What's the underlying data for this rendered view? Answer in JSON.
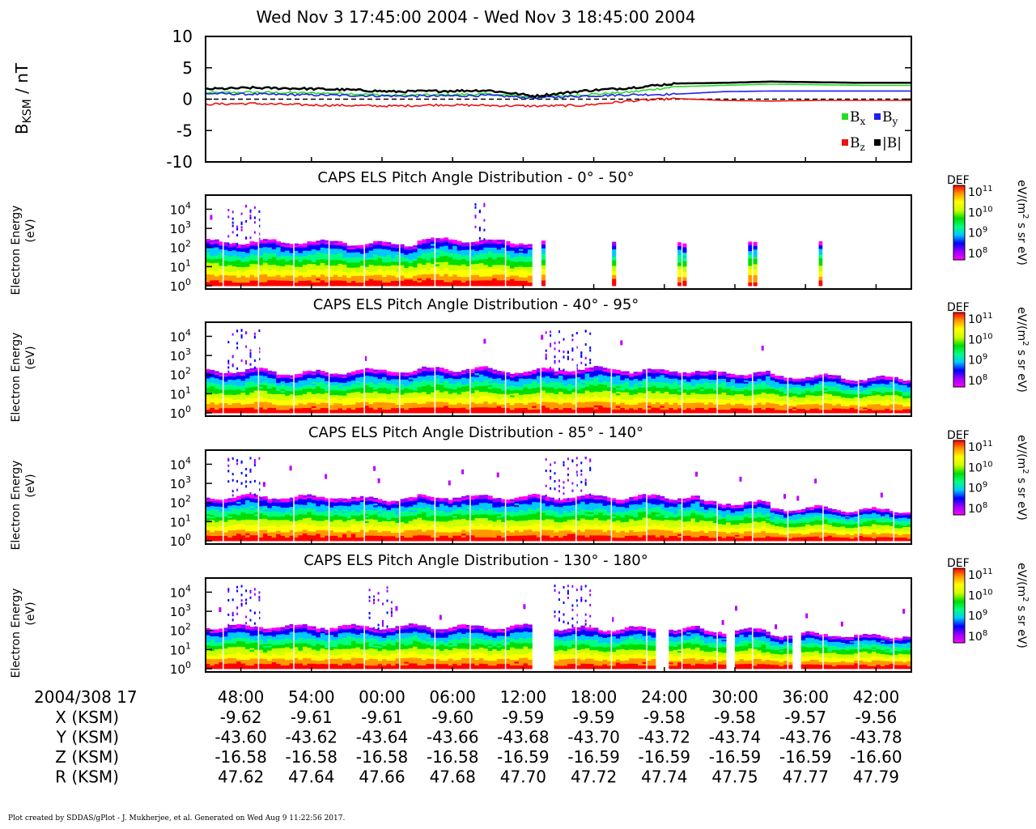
{
  "title": "Wed Nov 3 17:45:00 2004 - Wed Nov 3 18:45:00 2004",
  "footer": "Plot created by SDDAS/gPlot - J. Mukherjee, et al.  Generated on Wed Aug 9 11:22:56 2017.",
  "colors": {
    "bx": "#22dd22",
    "by": "#1f1fee",
    "bz": "#ee1111",
    "btot": "#000000",
    "colormap": [
      "#ff00ff",
      "#9a00ff",
      "#0000ff",
      "#00c8ff",
      "#00ff80",
      "#00dd00",
      "#ccff00",
      "#ffff00",
      "#ff9900",
      "#ff0000"
    ]
  },
  "chart_data": [
    {
      "type": "line",
      "title": "",
      "ylabel_base": "B",
      "ylabel_sub": "KSM",
      "ylabel_unit": " / nT",
      "ylim": [
        -10,
        10
      ],
      "yticks": [
        "10",
        "5",
        "0",
        "-5",
        "-10"
      ],
      "legend_position": "bottom-right",
      "legend": [
        {
          "base": "B",
          "sub": "x",
          "color_key": "bx"
        },
        {
          "base": "B",
          "sub": "y",
          "color_key": "by"
        },
        {
          "base": "B",
          "sub": "z",
          "color_key": "bz"
        },
        {
          "base": "|B|",
          "sub": "",
          "color_key": "btot"
        }
      ],
      "x_minutes": [
        0,
        4,
        8,
        12,
        16,
        20,
        24,
        28,
        32,
        36,
        40,
        44,
        48,
        52,
        56,
        60
      ],
      "series": [
        {
          "name": "Bx",
          "color_key": "bx",
          "values": [
            1.0,
            1.1,
            1.0,
            0.9,
            0.6,
            0.7,
            0.8,
            0.3,
            0.7,
            1.1,
            2.0,
            2.2,
            2.4,
            2.3,
            2.2,
            2.2
          ]
        },
        {
          "name": "By",
          "color_key": "by",
          "values": [
            0.9,
            0.8,
            0.7,
            0.6,
            0.5,
            0.5,
            0.6,
            0.2,
            0.5,
            0.7,
            0.8,
            1.2,
            1.3,
            1.3,
            1.3,
            1.3
          ]
        },
        {
          "name": "Bz",
          "color_key": "bz",
          "values": [
            -0.8,
            -0.7,
            -0.9,
            -1.0,
            -1.1,
            -0.9,
            -1.0,
            -1.1,
            -1.0,
            -0.3,
            0.1,
            -0.2,
            -0.3,
            -0.2,
            -0.2,
            -0.2
          ]
        },
        {
          "name": "|B|",
          "color_key": "btot",
          "values": [
            1.6,
            1.8,
            1.7,
            1.5,
            1.2,
            1.3,
            1.4,
            0.5,
            1.3,
            1.8,
            2.5,
            2.6,
            2.8,
            2.7,
            2.6,
            2.6
          ]
        }
      ]
    },
    {
      "type": "heatmap",
      "title": "CAPS ELS Pitch Angle Distribution - 0° - 50°",
      "ylabel": "Electron Energy",
      "ylabel2": "(eV)",
      "yticks": [
        {
          "base": "10",
          "exp": "4"
        },
        {
          "base": "10",
          "exp": "3"
        },
        {
          "base": "10",
          "exp": "2"
        },
        {
          "base": "10",
          "exp": "1"
        },
        {
          "base": "10",
          "exp": "0"
        }
      ],
      "colorbar": {
        "label": "DEF",
        "unit_a": "eV/(m",
        "unit_exp": "2",
        "unit_b": " s sr eV)",
        "ticks": [
          {
            "base": "10",
            "exp": "11"
          },
          {
            "base": "10",
            "exp": "10"
          },
          {
            "base": "10",
            "exp": "9"
          },
          {
            "base": "10",
            "exp": "8"
          }
        ]
      },
      "upper_log_energy": [
        2.3,
        2.3,
        2.2,
        2.4,
        2.3,
        2.2,
        2.3,
        2.4,
        2.3,
        2.2
      ],
      "data_gaps_minutes": [
        [
          27.8,
          28.4
        ],
        [
          28.9,
          34.4
        ],
        [
          35.0,
          40.3
        ],
        [
          40.9,
          46.1
        ],
        [
          46.7,
          52.0
        ],
        [
          52.6,
          60
        ]
      ],
      "speckle_windows_minutes": [
        [
          2,
          5
        ],
        [
          23,
          24
        ]
      ],
      "gap_style": "white"
    },
    {
      "type": "heatmap",
      "title": "CAPS ELS Pitch Angle Distribution - 40° - 95°",
      "ylabel": "Electron Energy",
      "ylabel2": "(eV)",
      "yticks": [
        {
          "base": "10",
          "exp": "4"
        },
        {
          "base": "10",
          "exp": "3"
        },
        {
          "base": "10",
          "exp": "2"
        },
        {
          "base": "10",
          "exp": "1"
        },
        {
          "base": "10",
          "exp": "0"
        }
      ],
      "colorbar": {
        "label": "DEF",
        "unit_a": "eV/(m",
        "unit_exp": "2",
        "unit_b": " s sr eV)",
        "ticks": [
          {
            "base": "10",
            "exp": "11"
          },
          {
            "base": "10",
            "exp": "10"
          },
          {
            "base": "10",
            "exp": "9"
          },
          {
            "base": "10",
            "exp": "8"
          }
        ]
      },
      "upper_log_energy": [
        2.2,
        2.1,
        2.2,
        2.3,
        2.2,
        2.3,
        2.2,
        2.1,
        1.9,
        1.8
      ],
      "data_gaps_minutes": [],
      "speckle_windows_minutes": [
        [
          2,
          5
        ],
        [
          29,
          33
        ]
      ],
      "gap_style": "white"
    },
    {
      "type": "heatmap",
      "title": "CAPS ELS Pitch Angle Distribution - 85° - 140°",
      "ylabel": "Electron Energy",
      "ylabel2": "(eV)",
      "yticks": [
        {
          "base": "10",
          "exp": "4"
        },
        {
          "base": "10",
          "exp": "3"
        },
        {
          "base": "10",
          "exp": "2"
        },
        {
          "base": "10",
          "exp": "1"
        },
        {
          "base": "10",
          "exp": "0"
        }
      ],
      "colorbar": {
        "label": "DEF",
        "unit_a": "eV/(m",
        "unit_exp": "2",
        "unit_b": " s sr eV)",
        "ticks": [
          {
            "base": "10",
            "exp": "11"
          },
          {
            "base": "10",
            "exp": "10"
          },
          {
            "base": "10",
            "exp": "9"
          },
          {
            "base": "10",
            "exp": "8"
          }
        ]
      },
      "upper_log_energy": [
        2.3,
        2.3,
        2.2,
        2.3,
        2.3,
        2.3,
        2.3,
        2.0,
        1.7,
        1.6
      ],
      "data_gaps_minutes": [],
      "speckle_windows_minutes": [
        [
          2,
          5
        ],
        [
          29,
          33
        ]
      ],
      "gap_style": "white"
    },
    {
      "type": "heatmap",
      "title": "CAPS ELS Pitch Angle Distribution - 130° - 180°",
      "ylabel": "Electron Energy",
      "ylabel2": "(eV)",
      "yticks": [
        {
          "base": "10",
          "exp": "4"
        },
        {
          "base": "10",
          "exp": "3"
        },
        {
          "base": "10",
          "exp": "2"
        },
        {
          "base": "10",
          "exp": "1"
        },
        {
          "base": "10",
          "exp": "0"
        }
      ],
      "colorbar": {
        "label": "DEF",
        "unit_a": "eV/(m",
        "unit_exp": "2",
        "unit_b": " s sr eV)",
        "ticks": [
          {
            "base": "10",
            "exp": "11"
          },
          {
            "base": "10",
            "exp": "10"
          },
          {
            "base": "10",
            "exp": "9"
          },
          {
            "base": "10",
            "exp": "8"
          }
        ]
      },
      "upper_log_energy": [
        2.2,
        2.2,
        2.2,
        2.2,
        2.2,
        2.1,
        2.1,
        2.0,
        1.8,
        1.7
      ],
      "data_gaps_minutes": [
        [
          27.8,
          29.8
        ],
        [
          38.3,
          39.2
        ],
        [
          44.2,
          45.0
        ],
        [
          50.0,
          50.8
        ]
      ],
      "speckle_windows_minutes": [
        [
          2,
          5
        ],
        [
          14,
          16
        ],
        [
          29,
          33
        ]
      ],
      "gap_style": "white"
    }
  ],
  "time_axis": {
    "start_label": "2004/308 17",
    "start_minute": 45,
    "labels": [
      "48:00",
      "54:00",
      "00:00",
      "06:00",
      "12:00",
      "18:00",
      "24:00",
      "30:00",
      "36:00",
      "42:00"
    ],
    "label_offsets_minutes": [
      3,
      9,
      15,
      21,
      27,
      33,
      39,
      45,
      51,
      57
    ],
    "span_minutes": 60
  },
  "ephemeris": [
    {
      "label": "X (KSM)",
      "values": [
        "-9.62",
        "-9.61",
        "-9.61",
        "-9.60",
        "-9.59",
        "-9.59",
        "-9.58",
        "-9.58",
        "-9.57",
        "-9.56"
      ]
    },
    {
      "label": "Y (KSM)",
      "values": [
        "-43.60",
        "-43.62",
        "-43.64",
        "-43.66",
        "-43.68",
        "-43.70",
        "-43.72",
        "-43.74",
        "-43.76",
        "-43.78"
      ]
    },
    {
      "label": "Z (KSM)",
      "values": [
        "-16.58",
        "-16.58",
        "-16.58",
        "-16.58",
        "-16.59",
        "-16.59",
        "-16.59",
        "-16.59",
        "-16.59",
        "-16.60"
      ]
    },
    {
      "label": "R (KSM)",
      "values": [
        "47.62",
        "47.64",
        "47.66",
        "47.68",
        "47.70",
        "47.72",
        "47.74",
        "47.75",
        "47.77",
        "47.79"
      ]
    }
  ]
}
